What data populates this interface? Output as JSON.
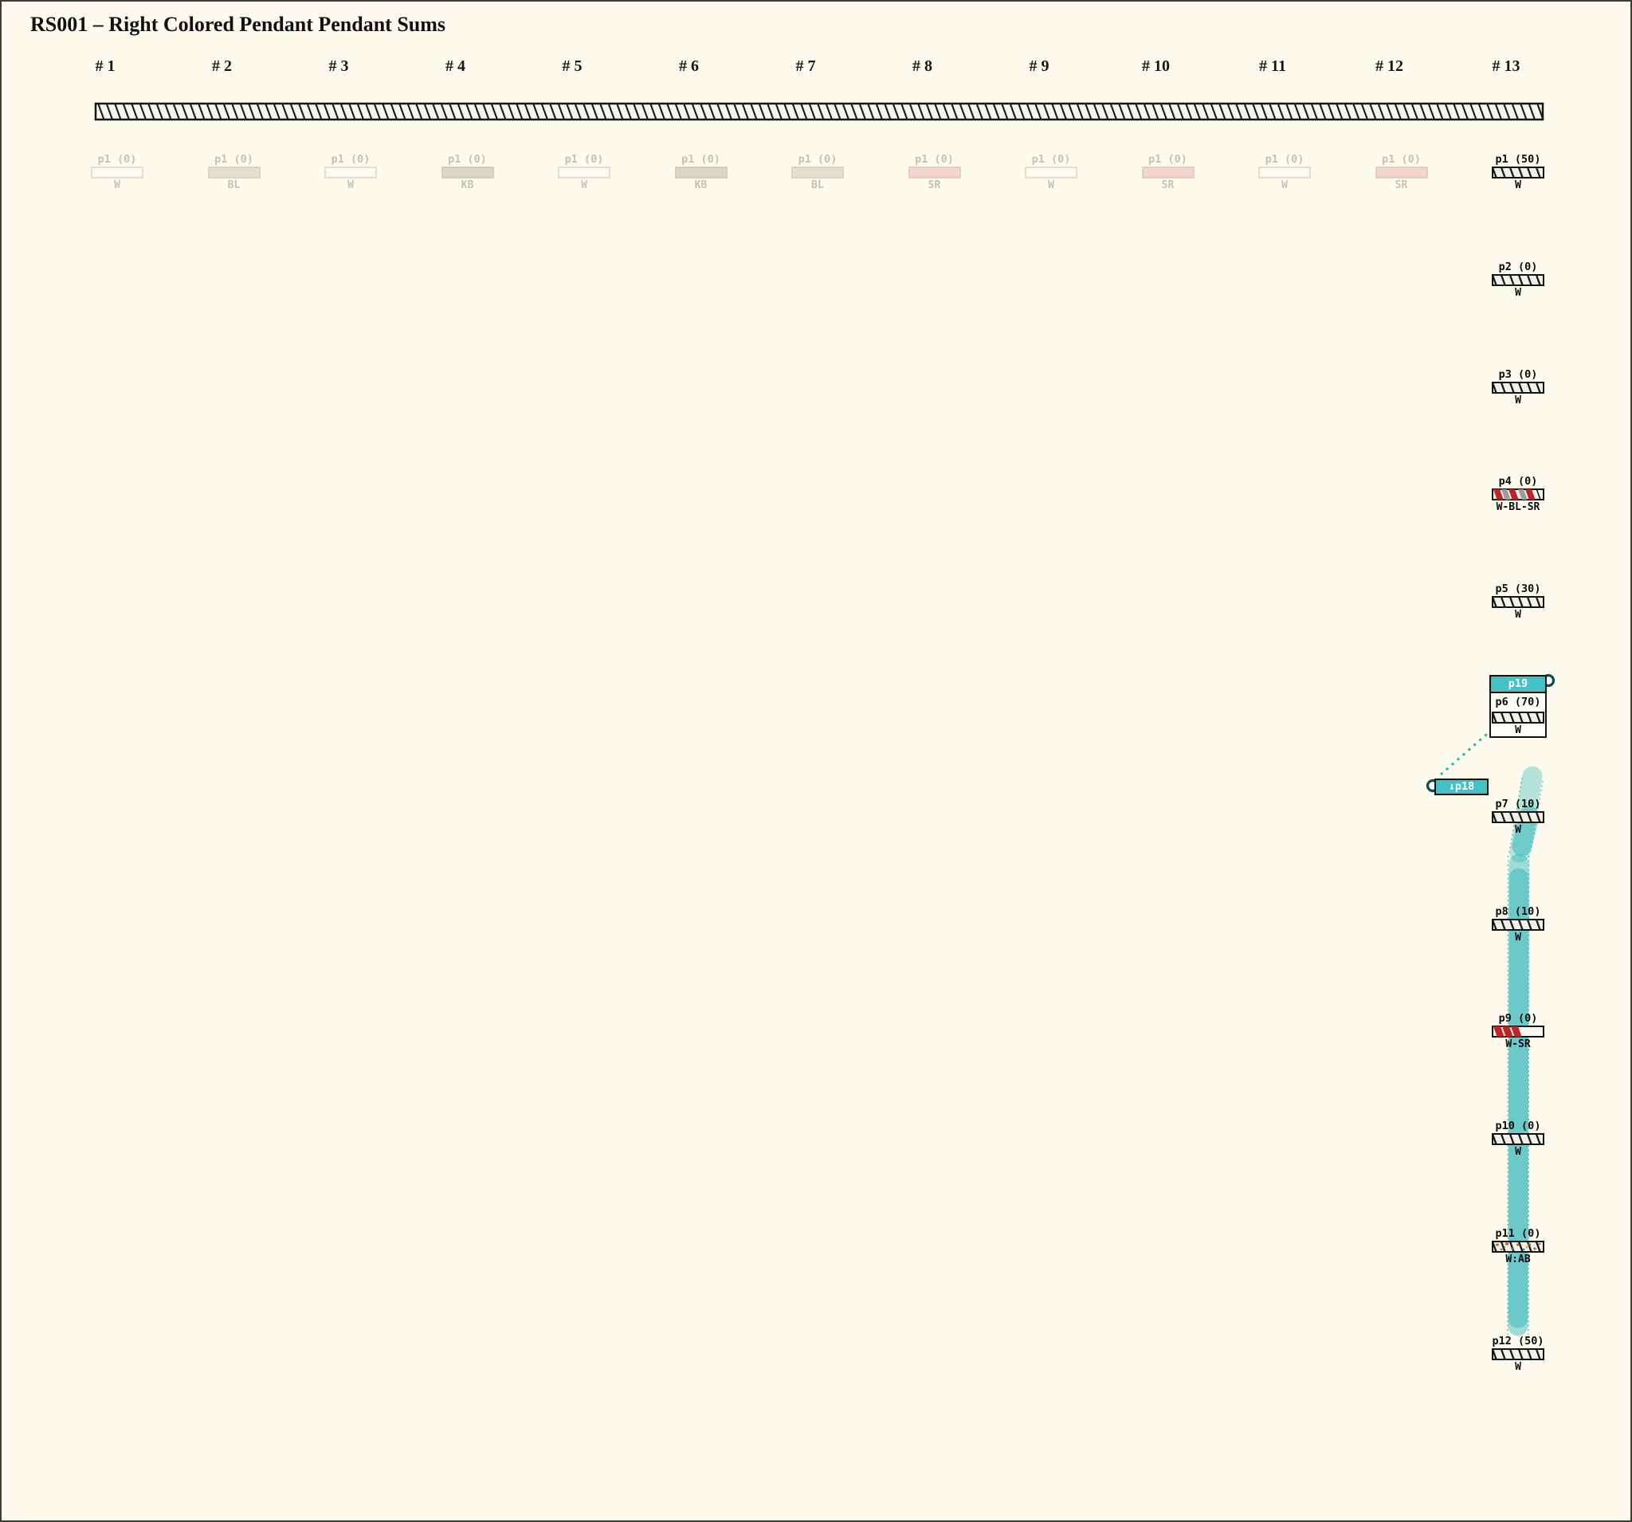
{
  "title": "RS001 – Right Colored Pendant Pendant Sums",
  "columns": [
    "# 1",
    "# 2",
    "# 3",
    "# 4",
    "# 5",
    "# 6",
    "# 7",
    "# 8",
    "# 9",
    "# 10",
    "# 11",
    "# 12",
    "# 13"
  ],
  "ghost_row": [
    {
      "label": "p1 (0)",
      "sublabel": "W",
      "type": "W"
    },
    {
      "label": "p1 (0)",
      "sublabel": "BL",
      "type": "BL"
    },
    {
      "label": "p1 (0)",
      "sublabel": "W",
      "type": "W"
    },
    {
      "label": "p1 (0)",
      "sublabel": "KB",
      "type": "KB"
    },
    {
      "label": "p1 (0)",
      "sublabel": "W",
      "type": "W"
    },
    {
      "label": "p1 (0)",
      "sublabel": "KB",
      "type": "KB"
    },
    {
      "label": "p1 (0)",
      "sublabel": "BL",
      "type": "BL"
    },
    {
      "label": "p1 (0)",
      "sublabel": "SR",
      "type": "SR"
    },
    {
      "label": "p1 (0)",
      "sublabel": "W",
      "type": "W"
    },
    {
      "label": "p1 (0)",
      "sublabel": "SR",
      "type": "SR"
    },
    {
      "label": "p1 (0)",
      "sublabel": "W",
      "type": "W"
    },
    {
      "label": "p1 (0)",
      "sublabel": "SR",
      "type": "SR"
    }
  ],
  "pendant_column": [
    {
      "label": "p1 (50)",
      "sublabel": "W",
      "type": "W"
    },
    {
      "label": "p2 (0)",
      "sublabel": "W",
      "type": "W"
    },
    {
      "label": "p3 (0)",
      "sublabel": "W",
      "type": "W"
    },
    {
      "label": "p4 (0)",
      "sublabel": "W-BL-SR",
      "type": "WBLSR"
    },
    {
      "label": "p5 (30)",
      "sublabel": "W",
      "type": "W"
    },
    {
      "label": "p6 (70)",
      "sublabel": "W",
      "type": "W",
      "boxed": true
    },
    {
      "label": "p7 (10)",
      "sublabel": "W",
      "type": "W"
    },
    {
      "label": "p8 (10)",
      "sublabel": "W",
      "type": "W"
    },
    {
      "label": "p9 (0)",
      "sublabel": "W-SR",
      "type": "WSR"
    },
    {
      "label": "p10 (0)",
      "sublabel": "W",
      "type": "W"
    },
    {
      "label": "p11 (0)",
      "sublabel": "W:AB",
      "type": "WAB"
    },
    {
      "label": "p12 (50)",
      "sublabel": "W",
      "type": "W"
    }
  ],
  "selection": {
    "p19_label": "p19",
    "p18_label": "↓p18"
  },
  "colors": {
    "background": "#fdfbee",
    "teal": "#45c1c6",
    "band_teal": "#2db4ba",
    "handle_ring": "#17484f",
    "stripe_red": "#bf2429",
    "stripe_gray": "#9b9b98",
    "speckle_rust": "#a85c30",
    "ghost_text": "#c6c1b3"
  }
}
